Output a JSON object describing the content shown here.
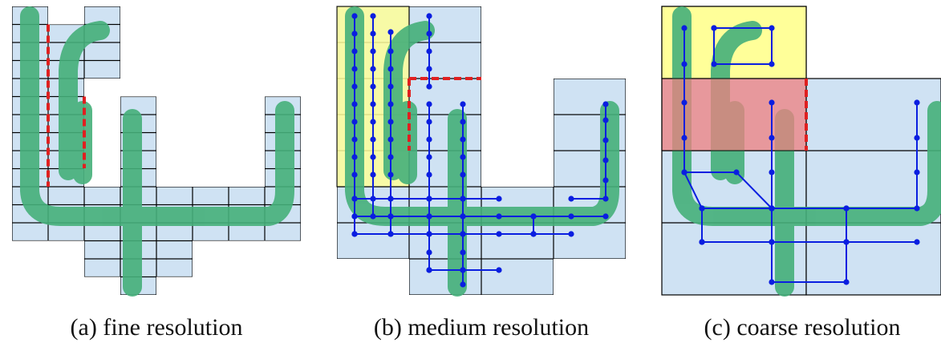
{
  "panels": [
    {
      "caption": "(a) fine resolution"
    },
    {
      "caption": "(b) medium resolution"
    },
    {
      "caption": "(c) coarse resolution"
    }
  ]
}
